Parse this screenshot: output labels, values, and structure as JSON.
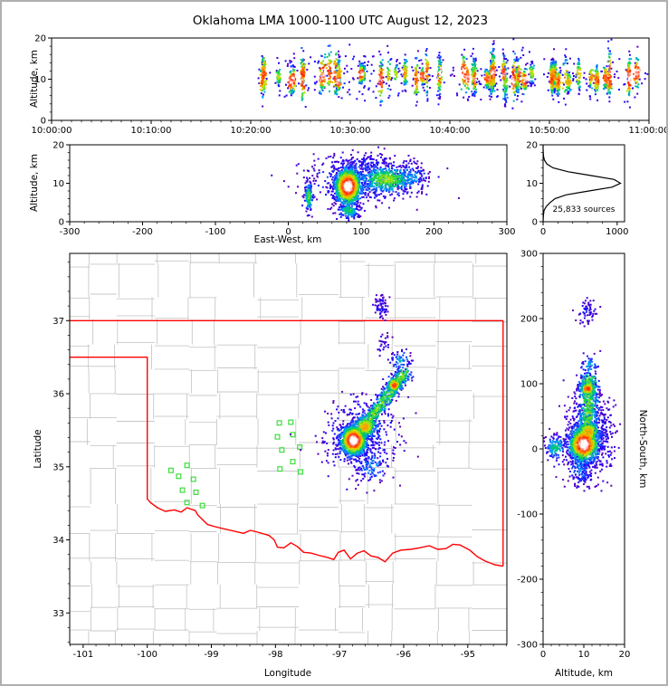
{
  "title": "Oklahoma LMA 1000-1100 UTC August 12, 2023",
  "colors": {
    "state_border": "#ff0000",
    "county_line": "#c8c8c8",
    "station": "#3cdc3c",
    "axis": "#000000",
    "histogram_line": "#000000",
    "colormap_low_to_high": [
      "#6400b4",
      "#1e00ff",
      "#00a0ff",
      "#00d250",
      "#c8e600",
      "#ff9600",
      "#ff1e00",
      "#ffffff"
    ]
  },
  "chart_data": [
    {
      "id": "time_height",
      "type": "scatter",
      "xlabel": "",
      "ylabel": "Altitude, km",
      "xlim_seconds": [
        0,
        3600
      ],
      "xtick_seconds": [
        0,
        600,
        1200,
        1800,
        2400,
        3000,
        3600
      ],
      "xtick_labels": [
        "10:00:00",
        "10:10:00",
        "10:20:00",
        "10:30:00",
        "10:40:00",
        "10:50:00",
        "11:00:00"
      ],
      "x_minor_step": 60,
      "ylim": [
        0,
        20
      ],
      "ytick_vals": [
        0,
        10,
        20
      ],
      "y_minor_step": 2,
      "activity": {
        "start_frac": 0.345,
        "end_frac": 1.0,
        "n_stripes": 58,
        "alt_mean_km": 10.6,
        "alt_center_jitter_km": 1.2,
        "stripe_alt_spread_km": [
          1.0,
          3.4
        ],
        "points_per_stripe": [
          20,
          80
        ],
        "stripe_heat": [
          0.5,
          1.0
        ],
        "background_points": 380,
        "background_alt_sd_km": 2.7,
        "background_heat": 0.15
      }
    },
    {
      "id": "ew_altitude",
      "type": "scatter",
      "xlabel": "East-West, km",
      "ylabel": "Altitude, km",
      "xlim": [
        -300,
        300
      ],
      "xtick_vals": [
        -300,
        -200,
        -100,
        0,
        100,
        200,
        300
      ],
      "x_minor_step": 20,
      "ylim": [
        0,
        20
      ],
      "ytick_vals": [
        0,
        10,
        20
      ],
      "y_minor_step": 2,
      "clusters": [
        {
          "kind": "gauss",
          "cx": 82,
          "cy": 9.2,
          "sx": 9,
          "sy": 2.3,
          "n": 1250,
          "heat": 1.0
        },
        {
          "kind": "gauss",
          "cx": 135,
          "cy": 11,
          "sx": 20,
          "sy": 1.8,
          "n": 430,
          "heat": 0.55
        },
        {
          "kind": "gauss",
          "cx": 100,
          "cy": 11,
          "sx": 42,
          "sy": 3.2,
          "n": 400,
          "heat": 0.22
        },
        {
          "kind": "gauss",
          "cx": 105,
          "cy": 15.3,
          "sx": 28,
          "sy": 1.3,
          "n": 110,
          "heat": 0.12
        },
        {
          "kind": "gauss",
          "cx": 28,
          "cy": 6.5,
          "sx": 2.5,
          "sy": 1.9,
          "n": 130,
          "heat": 0.5
        },
        {
          "kind": "gauss",
          "cx": 83,
          "cy": 2.9,
          "sx": 7,
          "sy": 1.1,
          "n": 150,
          "heat": 0.42
        },
        {
          "kind": "gauss",
          "cx": 170,
          "cy": 11.5,
          "sx": 10,
          "sy": 2.0,
          "n": 100,
          "heat": 0.3
        }
      ]
    },
    {
      "id": "alt_histogram",
      "type": "line",
      "label": "25,833 sources",
      "xlim": [
        0,
        1100
      ],
      "xtick_vals": [
        0,
        1000
      ],
      "x_minor_step": 200,
      "ylim": [
        0,
        20
      ],
      "ytick_vals": [
        0,
        10,
        20
      ],
      "y_minor_step": 2,
      "altitude_km": [
        0,
        1,
        2,
        3,
        4,
        5,
        6,
        7,
        8,
        9,
        10,
        11,
        12,
        13,
        14,
        15,
        16,
        17,
        18,
        19,
        20
      ],
      "source_counts": [
        0,
        2,
        6,
        14,
        45,
        95,
        160,
        310,
        620,
        930,
        1045,
        960,
        650,
        340,
        135,
        52,
        18,
        6,
        2,
        0,
        0
      ]
    },
    {
      "id": "plan_view",
      "type": "scatter",
      "xlabel": "Longitude",
      "ylabel": "Latitude",
      "xlim": [
        -101.21,
        -94.39
      ],
      "xtick_vals": [
        -101,
        -100,
        -99,
        -98,
        -97,
        -96,
        -95
      ],
      "x_minor_step": 0.2,
      "ylim": [
        32.57,
        37.92
      ],
      "ytick_vals": [
        33,
        34,
        35,
        36,
        37
      ],
      "y_minor_step": 0.2,
      "stations_lon_lat": [
        [
          -97.94,
          35.6
        ],
        [
          -97.76,
          35.61
        ],
        [
          -97.73,
          35.44
        ],
        [
          -97.97,
          35.41
        ],
        [
          -97.62,
          35.27
        ],
        [
          -97.9,
          35.23
        ],
        [
          -97.73,
          35.07
        ],
        [
          -97.93,
          34.97
        ],
        [
          -97.61,
          34.93
        ],
        [
          -99.38,
          35.02
        ],
        [
          -99.51,
          34.87
        ],
        [
          -99.28,
          34.83
        ],
        [
          -99.45,
          34.68
        ],
        [
          -99.24,
          34.65
        ],
        [
          -99.38,
          34.51
        ],
        [
          -99.14,
          34.47
        ],
        [
          -99.63,
          34.95
        ]
      ],
      "state_border_polylines": [
        [
          [
            -101.21,
            37.0
          ],
          [
            -94.45,
            37.0
          ]
        ],
        [
          [
            -94.45,
            37.0
          ],
          [
            -94.45,
            33.64
          ]
        ],
        [
          [
            -101.21,
            36.5
          ],
          [
            -100.0,
            36.5
          ],
          [
            -100.0,
            34.56
          ],
          [
            -99.95,
            34.51
          ],
          [
            -99.84,
            34.44
          ],
          [
            -99.72,
            34.39
          ],
          [
            -99.58,
            34.41
          ],
          [
            -99.47,
            34.38
          ],
          [
            -99.38,
            34.44
          ],
          [
            -99.25,
            34.4
          ],
          [
            -99.21,
            34.34
          ],
          [
            -99.06,
            34.21
          ],
          [
            -98.94,
            34.18
          ],
          [
            -98.8,
            34.15
          ],
          [
            -98.65,
            34.12
          ],
          [
            -98.5,
            34.09
          ],
          [
            -98.39,
            34.13
          ],
          [
            -98.25,
            34.1
          ],
          [
            -98.1,
            34.06
          ],
          [
            -98.02,
            34.0
          ],
          [
            -97.97,
            33.9
          ],
          [
            -97.87,
            33.89
          ],
          [
            -97.76,
            33.96
          ],
          [
            -97.66,
            33.91
          ],
          [
            -97.56,
            33.83
          ],
          [
            -97.45,
            33.82
          ],
          [
            -97.33,
            33.79
          ],
          [
            -97.19,
            33.76
          ],
          [
            -97.09,
            33.73
          ],
          [
            -97.02,
            33.83
          ],
          [
            -96.93,
            33.86
          ],
          [
            -96.83,
            33.74
          ],
          [
            -96.72,
            33.82
          ],
          [
            -96.62,
            33.85
          ],
          [
            -96.51,
            33.78
          ],
          [
            -96.4,
            33.76
          ],
          [
            -96.29,
            33.7
          ],
          [
            -96.17,
            33.82
          ],
          [
            -96.04,
            33.86
          ],
          [
            -95.89,
            33.87
          ],
          [
            -95.76,
            33.89
          ],
          [
            -95.6,
            33.92
          ],
          [
            -95.47,
            33.87
          ],
          [
            -95.34,
            33.88
          ],
          [
            -95.23,
            33.94
          ],
          [
            -95.12,
            33.93
          ],
          [
            -94.97,
            33.86
          ],
          [
            -94.85,
            33.77
          ],
          [
            -94.73,
            33.71
          ],
          [
            -94.58,
            33.66
          ],
          [
            -94.45,
            33.64
          ]
        ]
      ],
      "clusters": [
        {
          "kind": "gauss",
          "cx": -96.78,
          "cy": 35.36,
          "sx": 0.1,
          "sy": 0.1,
          "n": 1150,
          "heat": 1.0
        },
        {
          "kind": "gauss",
          "cx": -96.6,
          "cy": 35.55,
          "sx": 0.09,
          "sy": 0.08,
          "n": 280,
          "heat": 0.72
        },
        {
          "kind": "line",
          "x1": -96.55,
          "y1": 35.62,
          "x2": -95.98,
          "y2": 36.3,
          "sx": 0.07,
          "sy": 0.06,
          "n": 500,
          "heat": 0.55
        },
        {
          "kind": "gauss",
          "cx": -96.15,
          "cy": 36.12,
          "sx": 0.05,
          "sy": 0.05,
          "n": 130,
          "heat": 0.85
        },
        {
          "kind": "gauss",
          "cx": -96.7,
          "cy": 35.45,
          "sx": 0.3,
          "sy": 0.27,
          "n": 400,
          "heat": 0.2
        },
        {
          "kind": "gauss",
          "cx": -96.5,
          "cy": 35.02,
          "sx": 0.15,
          "sy": 0.12,
          "n": 130,
          "heat": 0.25
        },
        {
          "kind": "gauss",
          "cx": -96.35,
          "cy": 37.2,
          "sx": 0.06,
          "sy": 0.09,
          "n": 70,
          "heat": 0.12
        },
        {
          "kind": "gauss",
          "cx": -96.05,
          "cy": 36.45,
          "sx": 0.08,
          "sy": 0.08,
          "n": 60,
          "heat": 0.3
        },
        {
          "kind": "gauss",
          "cx": -96.3,
          "cy": 36.7,
          "sx": 0.05,
          "sy": 0.08,
          "n": 25,
          "heat": 0.1
        }
      ]
    },
    {
      "id": "ns_altitude",
      "type": "scatter",
      "xlabel": "Altitude, km",
      "ylabel": "North-South, km",
      "xlim": [
        0,
        20
      ],
      "xtick_vals": [
        0,
        10,
        20
      ],
      "x_minor_step": 2,
      "ylim": [
        -300,
        300
      ],
      "ytick_vals": [
        -300,
        -200,
        -100,
        0,
        100,
        200,
        300
      ],
      "y_minor_step": 20,
      "clusters": [
        {
          "kind": "gauss",
          "cx": 10,
          "cy": 7,
          "sx": 1.8,
          "sy": 13,
          "n": 1000,
          "heat": 1.0
        },
        {
          "kind": "gauss",
          "cx": 11,
          "cy": 26,
          "sx": 1.6,
          "sy": 9,
          "n": 250,
          "heat": 0.72
        },
        {
          "kind": "line",
          "x1": 11,
          "y1": 35,
          "x2": 11.3,
          "y2": 110,
          "sx": 1.3,
          "sy": 7,
          "n": 470,
          "heat": 0.55
        },
        {
          "kind": "gauss",
          "cx": 11,
          "cy": 92,
          "sx": 1.0,
          "sy": 5,
          "n": 120,
          "heat": 0.85
        },
        {
          "kind": "gauss",
          "cx": 10.5,
          "cy": 15,
          "sx": 3.0,
          "sy": 33,
          "n": 380,
          "heat": 0.2
        },
        {
          "kind": "gauss",
          "cx": 9,
          "cy": -32,
          "sx": 1.5,
          "sy": 12,
          "n": 120,
          "heat": 0.25
        },
        {
          "kind": "gauss",
          "cx": 11,
          "cy": 210,
          "sx": 1.2,
          "sy": 10,
          "n": 60,
          "heat": 0.12
        },
        {
          "kind": "gauss",
          "cx": 11.3,
          "cy": 128,
          "sx": 1.2,
          "sy": 8,
          "n": 55,
          "heat": 0.3
        },
        {
          "kind": "gauss",
          "cx": 3,
          "cy": 2,
          "sx": 1.2,
          "sy": 9,
          "n": 130,
          "heat": 0.4
        },
        {
          "kind": "gauss",
          "cx": 15.3,
          "cy": 20,
          "sx": 1.3,
          "sy": 28,
          "n": 100,
          "heat": 0.12
        }
      ]
    }
  ]
}
